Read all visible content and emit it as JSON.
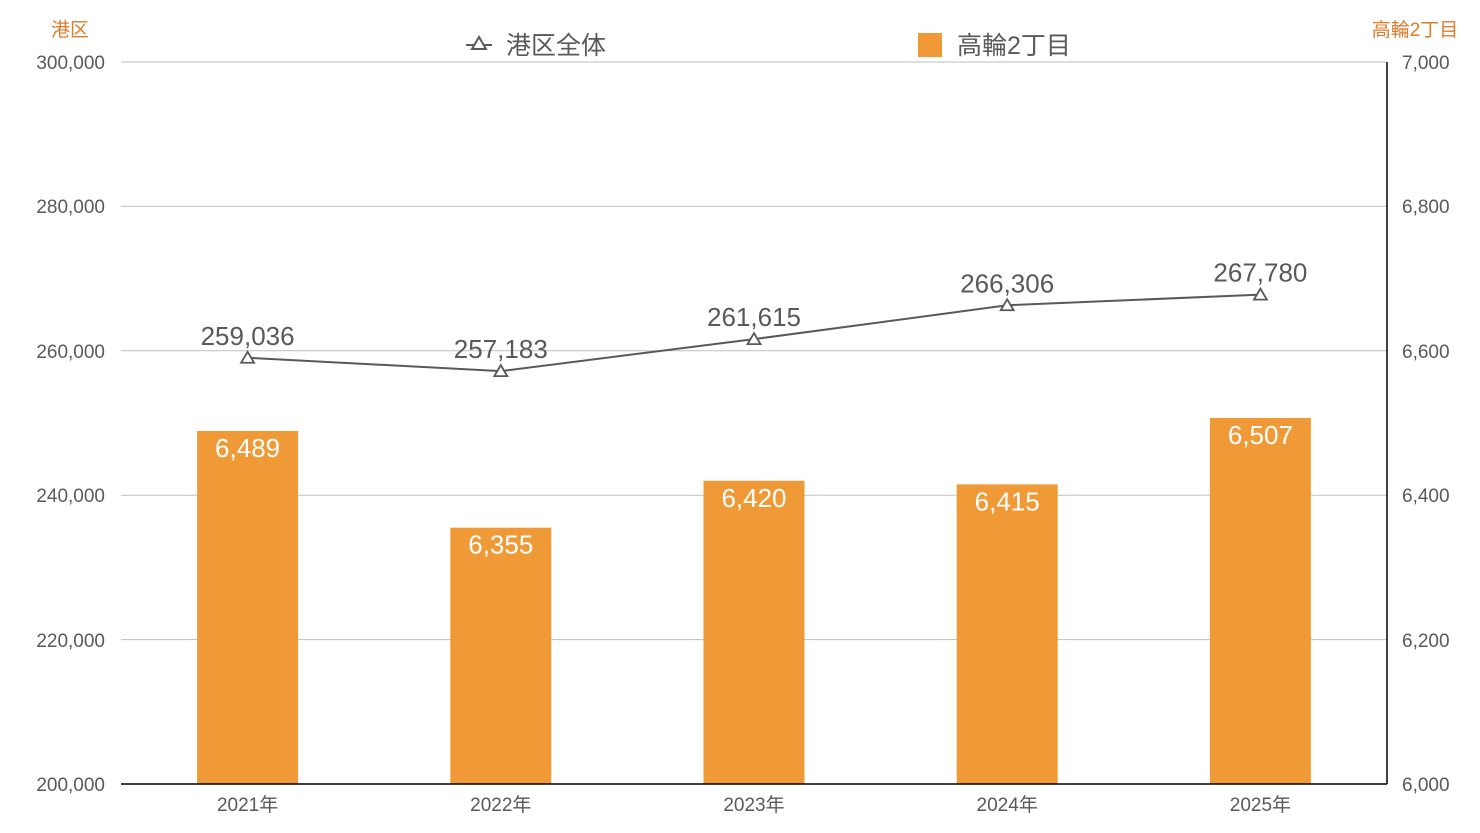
{
  "chart_data": {
    "type": "bar+line",
    "title": "",
    "categories": [
      "2021年",
      "2022年",
      "2023年",
      "2024年",
      "2025年"
    ],
    "series": [
      {
        "name": "港区全体",
        "type": "line",
        "axis": "left",
        "marker": "triangle-open",
        "color": "#595959",
        "values": [
          259036,
          257183,
          261615,
          266306,
          267780
        ],
        "labels": [
          "259,036",
          "257,183",
          "261,615",
          "266,306",
          "267,780"
        ]
      },
      {
        "name": "高輪2丁目",
        "type": "bar",
        "axis": "right",
        "color": "#ef9a37",
        "values": [
          6489,
          6355,
          6420,
          6415,
          6507
        ],
        "labels": [
          "6,489",
          "6,355",
          "6,420",
          "6,415",
          "6,507"
        ]
      }
    ],
    "left_axis": {
      "title": "港区",
      "range": [
        200000,
        300000
      ],
      "ticks": [
        "300,000",
        "280,000",
        "260,000",
        "240,000",
        "220,000",
        "200,000"
      ]
    },
    "right_axis": {
      "title": "高輪2丁目",
      "range": [
        6000,
        7000
      ],
      "ticks": [
        "7,000",
        "6,800",
        "6,600",
        "6,400",
        "6,200",
        "6,000"
      ]
    },
    "legend": {
      "position": "top",
      "items": [
        {
          "label": "港区全体",
          "symbol": "triangle-line"
        },
        {
          "label": "高輪2丁目",
          "symbol": "square"
        }
      ]
    },
    "grid": true,
    "colors": {
      "axis_title": "#e07b2a",
      "bar": "#ef9a37",
      "line": "#595959",
      "grid": "#bfbfbf",
      "text": "#595959"
    }
  }
}
